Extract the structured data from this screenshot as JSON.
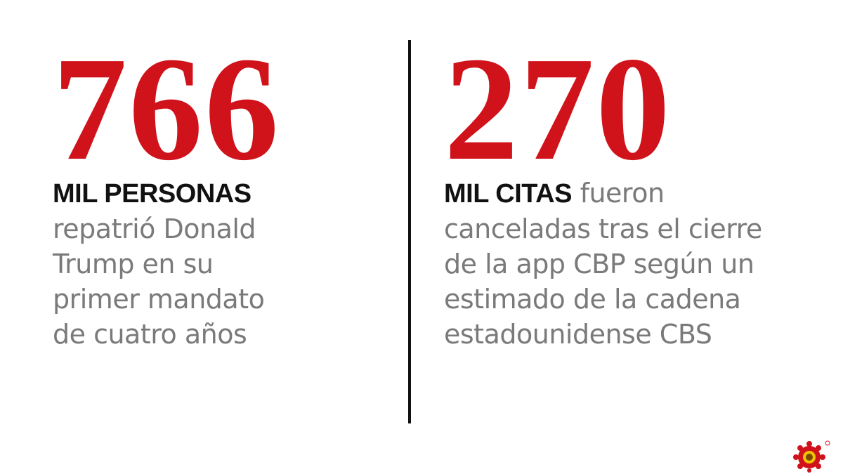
{
  "stats": [
    {
      "number": "766",
      "lead": "MIL PERSONAS",
      "lines": [
        "repatrió Donald",
        "Trump en su",
        "primer mandato",
        "de cuatro años"
      ]
    },
    {
      "number": "270",
      "lead": "MIL CITAS",
      "lines": [
        "fueron",
        "canceladas tras el cierre",
        "de la app CBP según un",
        "estimado de la cadena",
        "estadounidense CBS"
      ]
    }
  ]
}
